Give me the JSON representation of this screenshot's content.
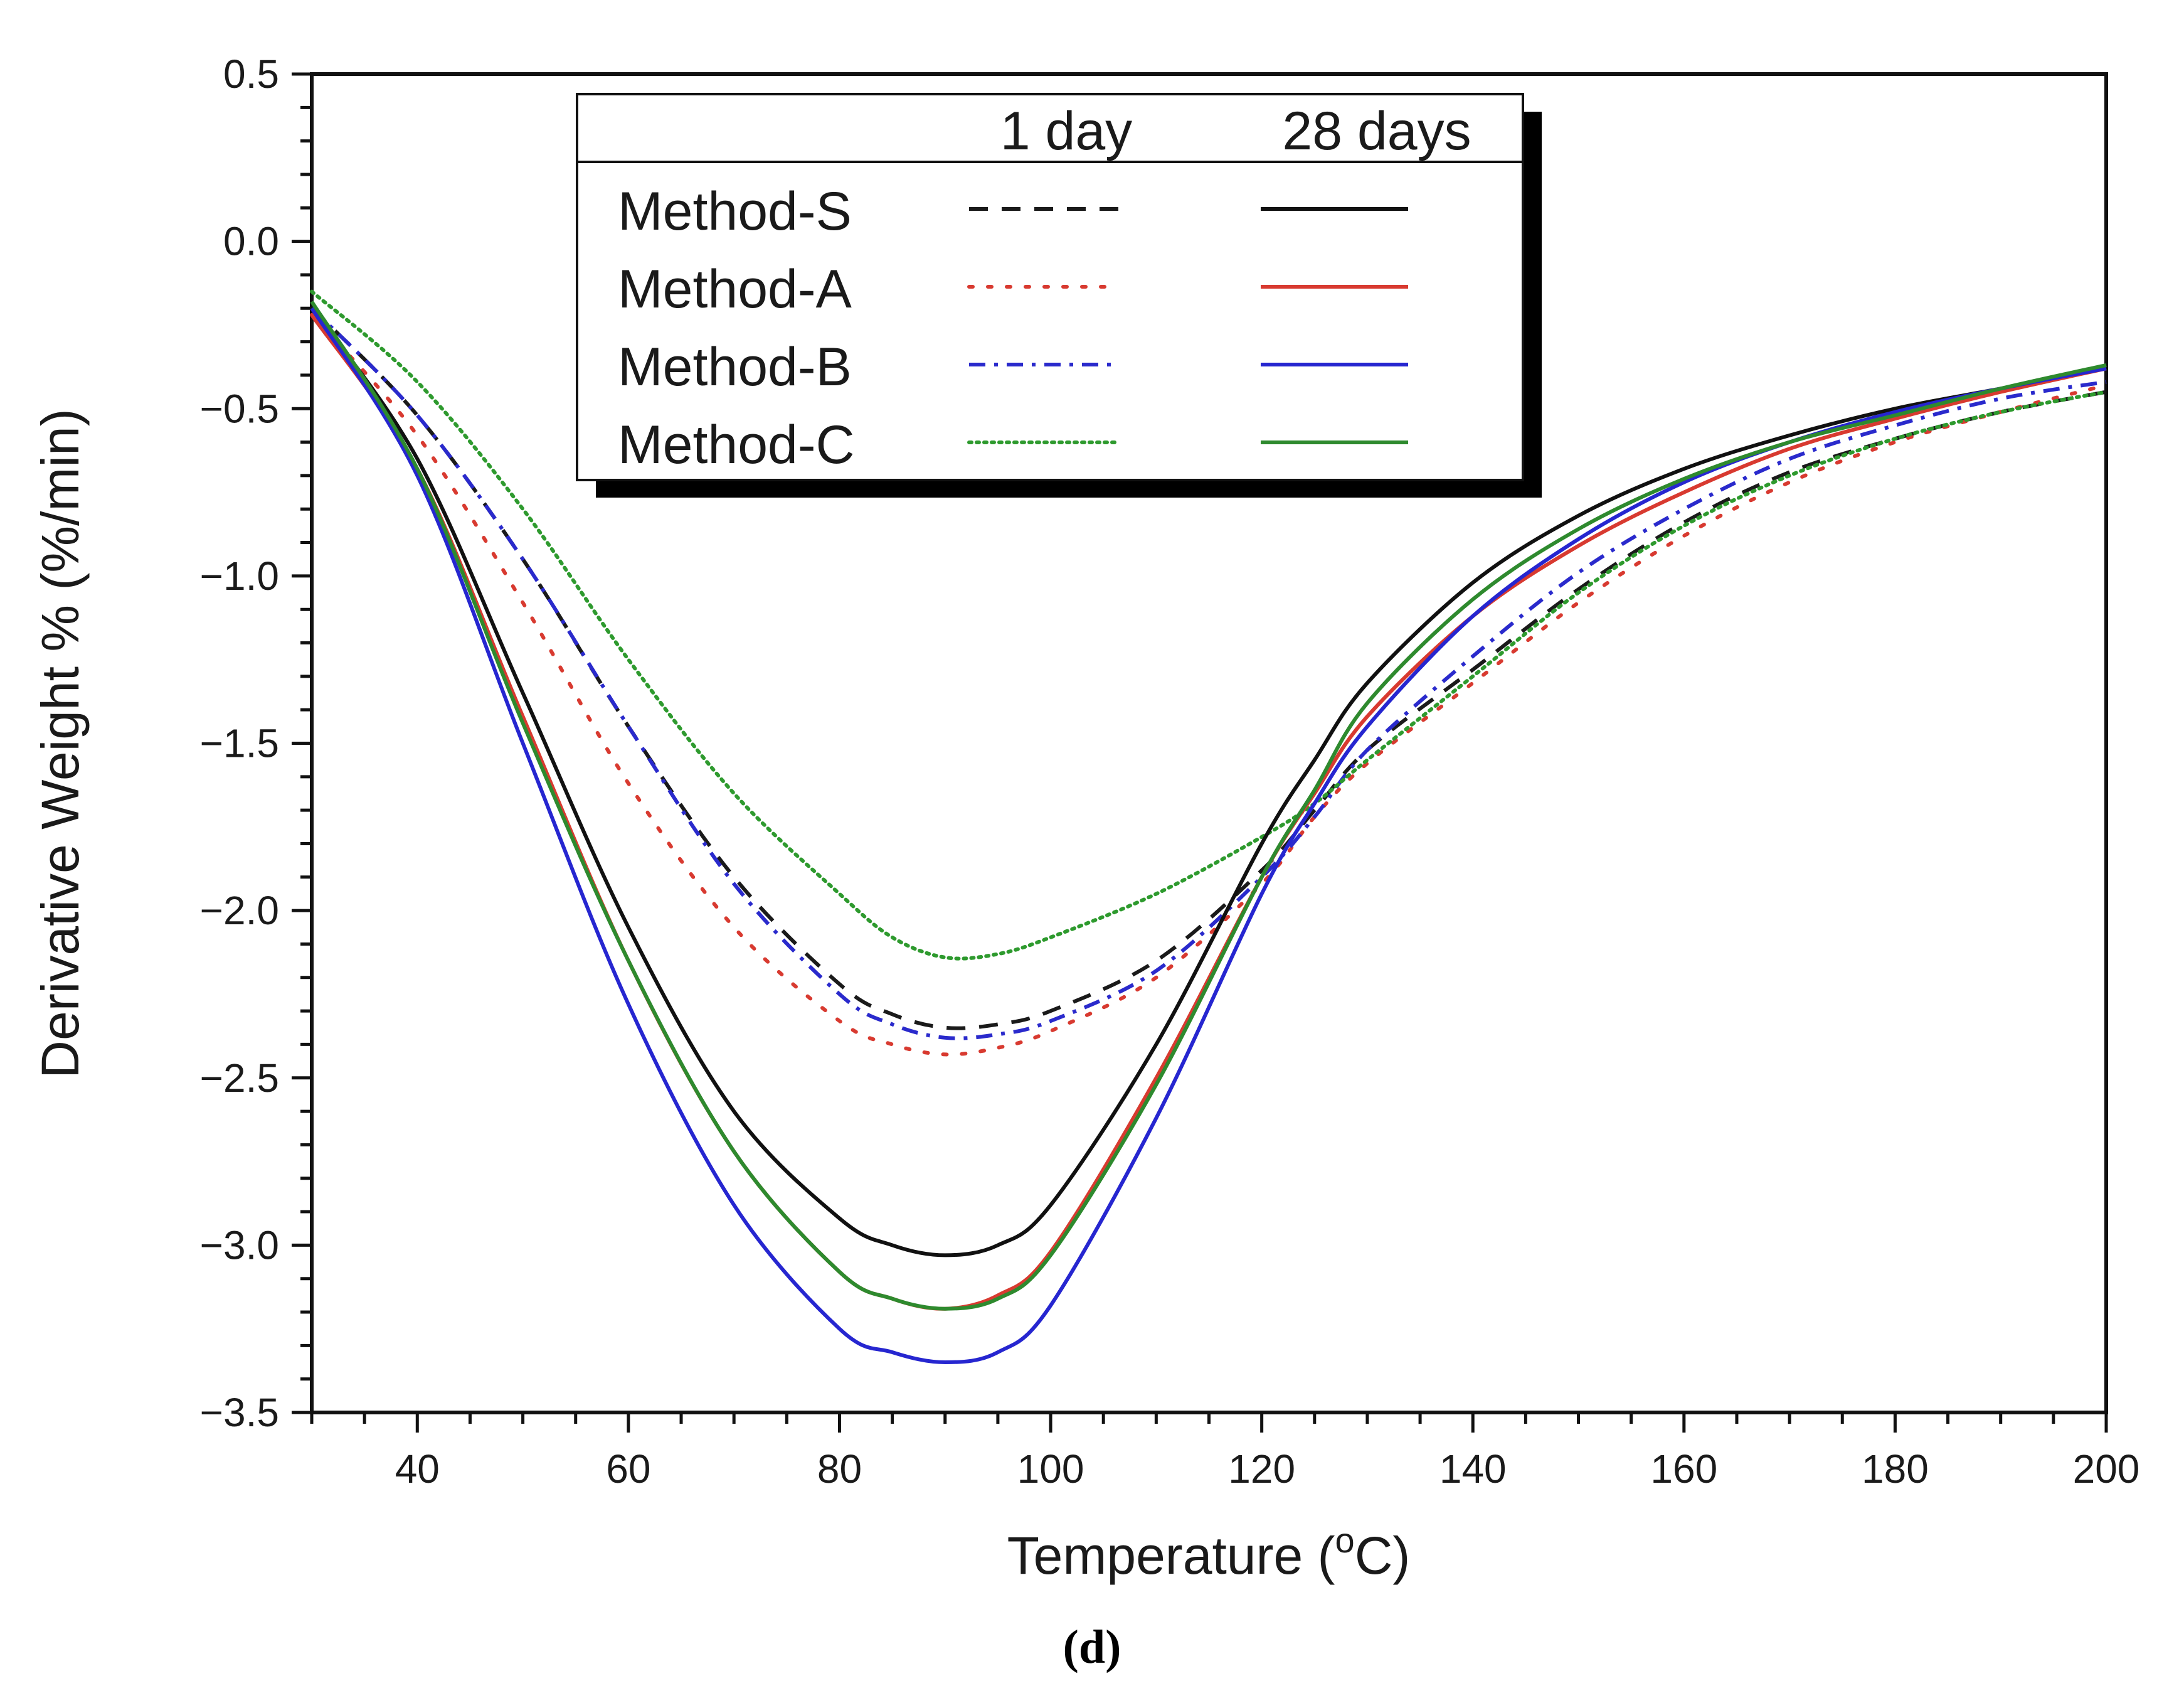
{
  "chart_data": {
    "type": "line",
    "xlabel": "Temperature (",
    "xlabel_sup": "o",
    "xlabel_unit": "C)",
    "ylabel": "Derivative Weight % (%/min)",
    "panel_label": "(d)",
    "xlim": [
      30,
      200
    ],
    "ylim": [
      -3.5,
      0.5
    ],
    "x_ticks": [
      40,
      60,
      80,
      100,
      120,
      140,
      160,
      180,
      200
    ],
    "x_tick_labels": [
      "40",
      "60",
      "80",
      "100",
      "120",
      "140",
      "160",
      "180",
      "200"
    ],
    "y_ticks": [
      0.5,
      0.0,
      -0.5,
      -1.0,
      -1.5,
      -2.0,
      -2.5,
      -3.0,
      -3.5
    ],
    "y_tick_labels": [
      "0.5",
      "0.0",
      "−0.5",
      "−1.0",
      "−1.5",
      "−2.0",
      "−2.5",
      "−3.0",
      "−3.5"
    ],
    "legend": {
      "placement": "top-left",
      "col_headers": [
        "1 day",
        "28 days"
      ],
      "rows": [
        "Method-S",
        "Method-A",
        "Method-B",
        "Method-C"
      ]
    },
    "x": [
      30,
      40,
      50,
      60,
      70,
      80,
      85,
      90,
      95,
      100,
      110,
      120,
      125,
      130,
      140,
      150,
      160,
      170,
      180,
      190,
      200
    ],
    "series": [
      {
        "name": "Method-S",
        "group": "1 day",
        "color": "#1a1a1a",
        "dash": "dashed",
        "values": [
          -0.2,
          -0.52,
          -0.95,
          -1.45,
          -1.9,
          -2.22,
          -2.31,
          -2.35,
          -2.34,
          -2.3,
          -2.15,
          -1.88,
          -1.7,
          -1.52,
          -1.28,
          -1.04,
          -0.84,
          -0.69,
          -0.59,
          -0.51,
          -0.45
        ]
      },
      {
        "name": "Method-A",
        "group": "1 day",
        "color": "#d83a30",
        "dash": "dotted",
        "values": [
          -0.22,
          -0.58,
          -1.08,
          -1.62,
          -2.05,
          -2.33,
          -2.4,
          -2.43,
          -2.41,
          -2.36,
          -2.2,
          -1.92,
          -1.72,
          -1.56,
          -1.32,
          -1.08,
          -0.88,
          -0.72,
          -0.6,
          -0.51,
          -0.43
        ]
      },
      {
        "name": "Method-B",
        "group": "1 day",
        "color": "#2a2acc",
        "dash": "dashdot",
        "values": [
          -0.2,
          -0.52,
          -0.95,
          -1.45,
          -1.92,
          -2.25,
          -2.34,
          -2.38,
          -2.37,
          -2.33,
          -2.18,
          -1.9,
          -1.72,
          -1.52,
          -1.24,
          -0.99,
          -0.8,
          -0.65,
          -0.55,
          -0.47,
          -0.42
        ]
      },
      {
        "name": "Method-C",
        "group": "1 day",
        "color": "#2e9a2e",
        "dash": "finedot",
        "values": [
          -0.15,
          -0.42,
          -0.8,
          -1.25,
          -1.65,
          -1.95,
          -2.08,
          -2.14,
          -2.13,
          -2.08,
          -1.95,
          -1.78,
          -1.68,
          -1.55,
          -1.3,
          -1.05,
          -0.85,
          -0.7,
          -0.59,
          -0.51,
          -0.45
        ]
      },
      {
        "name": "Method-S",
        "group": "28 days",
        "color": "#111111",
        "dash": "solid",
        "values": [
          -0.2,
          -0.65,
          -1.35,
          -2.05,
          -2.6,
          -2.92,
          -3.0,
          -3.03,
          -3.0,
          -2.88,
          -2.4,
          -1.8,
          -1.55,
          -1.32,
          -1.02,
          -0.82,
          -0.68,
          -0.58,
          -0.5,
          -0.44,
          -0.38
        ]
      },
      {
        "name": "Method-A",
        "group": "28 days",
        "color": "#d83a30",
        "dash": "solid",
        "values": [
          -0.22,
          -0.68,
          -1.42,
          -2.15,
          -2.72,
          -3.08,
          -3.16,
          -3.19,
          -3.15,
          -3.02,
          -2.5,
          -1.9,
          -1.65,
          -1.42,
          -1.12,
          -0.91,
          -0.75,
          -0.62,
          -0.53,
          -0.45,
          -0.38
        ]
      },
      {
        "name": "Method-B",
        "group": "28 days",
        "color": "#2626d0",
        "dash": "solid",
        "values": [
          -0.2,
          -0.7,
          -1.5,
          -2.28,
          -2.88,
          -3.25,
          -3.32,
          -3.35,
          -3.32,
          -3.18,
          -2.62,
          -1.95,
          -1.68,
          -1.45,
          -1.12,
          -0.89,
          -0.72,
          -0.6,
          -0.51,
          -0.44,
          -0.38
        ]
      },
      {
        "name": "Method-C",
        "group": "28 days",
        "color": "#2e8a2e",
        "dash": "solid",
        "values": [
          -0.18,
          -0.68,
          -1.44,
          -2.15,
          -2.72,
          -3.08,
          -3.16,
          -3.19,
          -3.16,
          -3.03,
          -2.52,
          -1.9,
          -1.64,
          -1.38,
          -1.07,
          -0.86,
          -0.71,
          -0.6,
          -0.52,
          -0.44,
          -0.37
        ]
      }
    ]
  }
}
